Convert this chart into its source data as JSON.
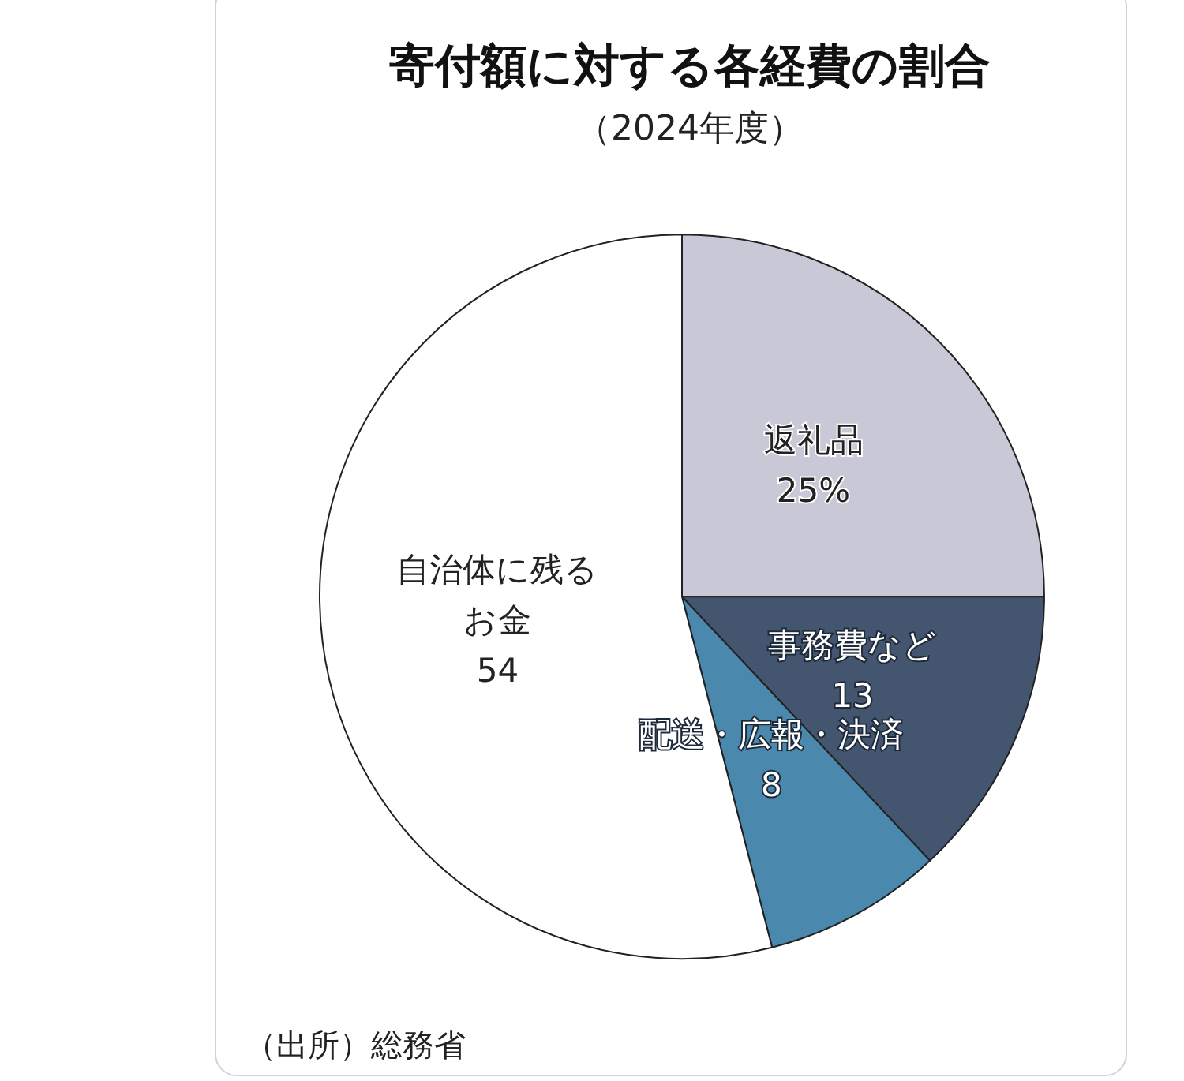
{
  "chart_data": {
    "type": "pie",
    "title": "寄付額に対する各経費の割合",
    "subtitle": "（2024年度）",
    "categories": [
      "返礼品",
      "事務費など",
      "配送・広報・決済",
      "自治体に残るお金"
    ],
    "values": [
      25,
      13,
      8,
      54
    ],
    "value_labels": [
      "25%",
      "13",
      "8",
      "54"
    ],
    "colors": [
      "#c8c8d6",
      "#44566f",
      "#4a88ad",
      "#ffffff"
    ],
    "annotations": [
      "（出所）総務省"
    ],
    "legend": false
  }
}
